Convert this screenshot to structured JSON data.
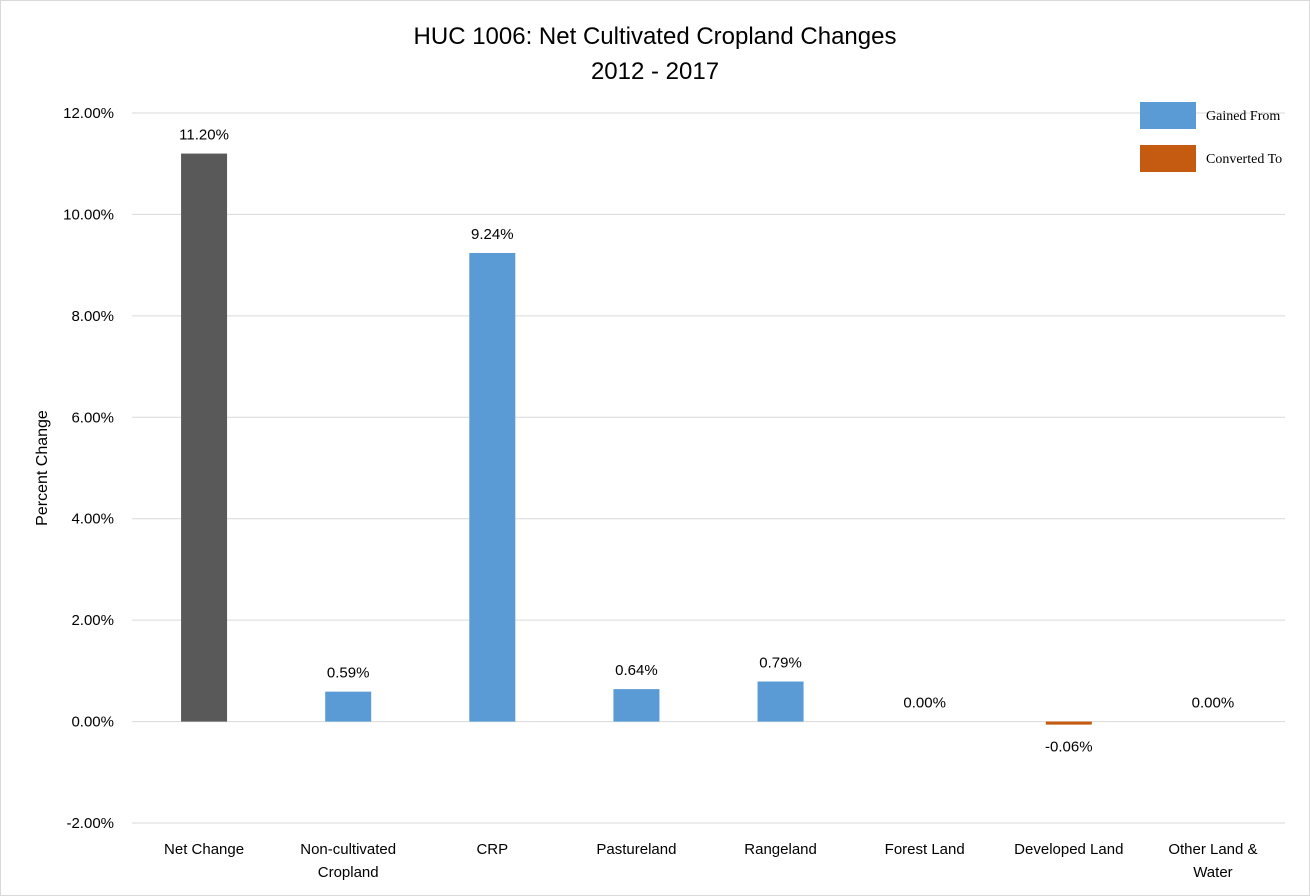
{
  "chart_data": {
    "type": "bar",
    "title": "HUC 1006: Net Cultivated Cropland Changes",
    "subtitle": "2012 - 2017",
    "ylabel": "Percent Change",
    "xlabel": "",
    "ylim": [
      -2,
      12
    ],
    "yticks": [
      "-2.00%",
      "0.00%",
      "2.00%",
      "4.00%",
      "6.00%",
      "8.00%",
      "10.00%",
      "12.00%"
    ],
    "ytick_values": [
      -2,
      0,
      2,
      4,
      6,
      8,
      10,
      12
    ],
    "grid": true,
    "legend_position": "top-right",
    "categories": [
      [
        "Net Change"
      ],
      [
        "Non-cultivated",
        "Cropland"
      ],
      [
        "CRP"
      ],
      [
        "Pastureland"
      ],
      [
        "Rangeland"
      ],
      [
        "Forest Land"
      ],
      [
        "Developed Land"
      ],
      [
        "Other Land &",
        "Water"
      ]
    ],
    "values": [
      11.2,
      0.59,
      9.24,
      0.64,
      0.79,
      0.0,
      -0.06,
      0.0
    ],
    "data_labels": [
      "11.20%",
      "0.59%",
      "9.24%",
      "0.64%",
      "0.79%",
      "0.00%",
      "-0.06%",
      "0.00%"
    ],
    "bar_kinds": [
      "net",
      "gain",
      "gain",
      "gain",
      "gain",
      "gain",
      "loss",
      "gain"
    ],
    "legend": [
      {
        "label": "Gained From",
        "color": "#5b9bd5"
      },
      {
        "label": "Converted To",
        "color": "#c55a11"
      }
    ],
    "colors": {
      "net": "#595959",
      "gain": "#5b9bd5",
      "loss": "#c55a11",
      "grid": "#d9d9d9"
    }
  }
}
